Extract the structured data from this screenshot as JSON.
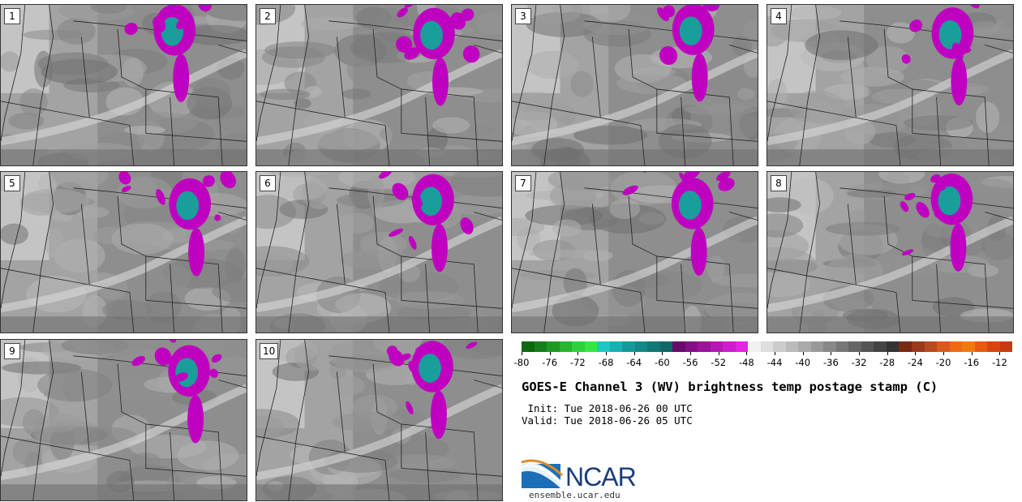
{
  "panels": [
    {
      "label": "1"
    },
    {
      "label": "2"
    },
    {
      "label": "3"
    },
    {
      "label": "4"
    },
    {
      "label": "5"
    },
    {
      "label": "6"
    },
    {
      "label": "7"
    },
    {
      "label": "8"
    },
    {
      "label": "9"
    },
    {
      "label": "10"
    }
  ],
  "colorbar": {
    "colors": [
      "#0b6a0b",
      "#13801a",
      "#1d9a24",
      "#26b52e",
      "#2fd13a",
      "#36e744",
      "#1ec7c4",
      "#1aafb0",
      "#16999b",
      "#148888",
      "#127777",
      "#0f6868",
      "#6a0a6a",
      "#840f84",
      "#9b139b",
      "#b418b4",
      "#cc1ecc",
      "#e423e4",
      "#f0f0f0",
      "#dedede",
      "#cccccc",
      "#bbbbbb",
      "#aaaaaa",
      "#999999",
      "#888888",
      "#777777",
      "#666666",
      "#555555",
      "#444444",
      "#333333",
      "#7a2a14",
      "#9a3a1a",
      "#b84a1e",
      "#d85a1c",
      "#ee6a14",
      "#f07a10",
      "#e85a10",
      "#d84410",
      "#c83a10"
    ],
    "tick_labels": [
      "-80",
      "-76",
      "-72",
      "-68",
      "-64",
      "-60",
      "-56",
      "-52",
      "-48",
      "-44",
      "-40",
      "-36",
      "-32",
      "-28",
      "-24",
      "-20",
      "-16",
      "-12"
    ]
  },
  "title": "GOES-E Channel 3 (WV) brightness temp postage stamp (C)",
  "init_line": " Init: Tue 2018-06-26 00 UTC",
  "valid_line": "Valid: Tue 2018-06-26 05 UTC",
  "logo": {
    "name": "NCAR",
    "url": "ensemble.ucar.edu"
  }
}
